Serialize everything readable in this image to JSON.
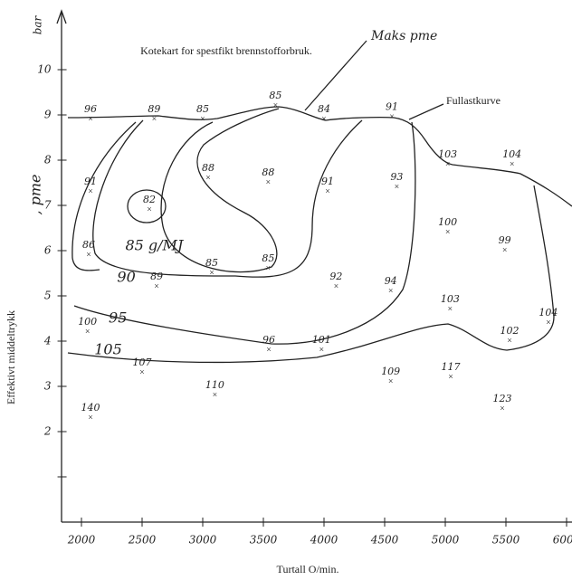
{
  "chart_data": {
    "type": "scatter",
    "title": "Kotekart for spestfikt brennstofforbruk.",
    "x_label": "Turtall O/min.",
    "y_label": "Effektivt middeltrykk",
    "y_unit": "bar",
    "y_symbol": ", pme",
    "annotations": [
      "Maks pme",
      "Fullastkurve"
    ],
    "contour_labels": [
      {
        "text": "85 g/MJ",
        "x": 2600,
        "y": 6.1
      },
      {
        "text": "90",
        "x": 2370,
        "y": 5.4
      },
      {
        "text": "95",
        "x": 2300,
        "y": 4.5
      },
      {
        "text": "105",
        "x": 2220,
        "y": 3.8
      }
    ],
    "x": [
      2075,
      2600,
      3000,
      3600,
      4000,
      4560,
      5020,
      5550,
      2075,
      2560,
      3045,
      3540,
      4030,
      4600,
      5020,
      5490,
      2060,
      2620,
      3075,
      3540,
      4100,
      4550,
      5040,
      5530,
      5850,
      2050,
      3545,
      3980,
      2500,
      3100,
      4550,
      5045,
      5470,
      2075
    ],
    "y": [
      8.9,
      8.9,
      8.9,
      9.2,
      8.9,
      8.95,
      7.9,
      7.9,
      7.3,
      6.9,
      7.6,
      7.5,
      7.3,
      7.4,
      6.4,
      6.0,
      5.9,
      5.2,
      5.5,
      5.6,
      5.2,
      5.1,
      4.7,
      4.0,
      4.4,
      4.2,
      3.8,
      3.8,
      3.3,
      2.8,
      3.1,
      3.2,
      2.5,
      2.3
    ],
    "values": [
      96,
      89,
      85,
      85,
      84,
      91,
      103,
      104,
      91,
      82,
      88,
      88,
      91,
      93,
      100,
      99,
      86,
      89,
      85,
      85,
      92,
      94,
      103,
      102,
      104,
      100,
      96,
      101,
      107,
      110,
      109,
      117,
      123,
      140
    ],
    "xlim": [
      1840,
      6040
    ],
    "ylim": [
      0,
      11.3
    ],
    "xticks": [
      2000,
      2500,
      3000,
      3500,
      4000,
      4500,
      5000,
      5500,
      6000
    ],
    "yticks": [
      {
        "value": 1,
        "label": null
      },
      2,
      3,
      4,
      5,
      6,
      7,
      8,
      9,
      10
    ],
    "color": "#222222"
  }
}
